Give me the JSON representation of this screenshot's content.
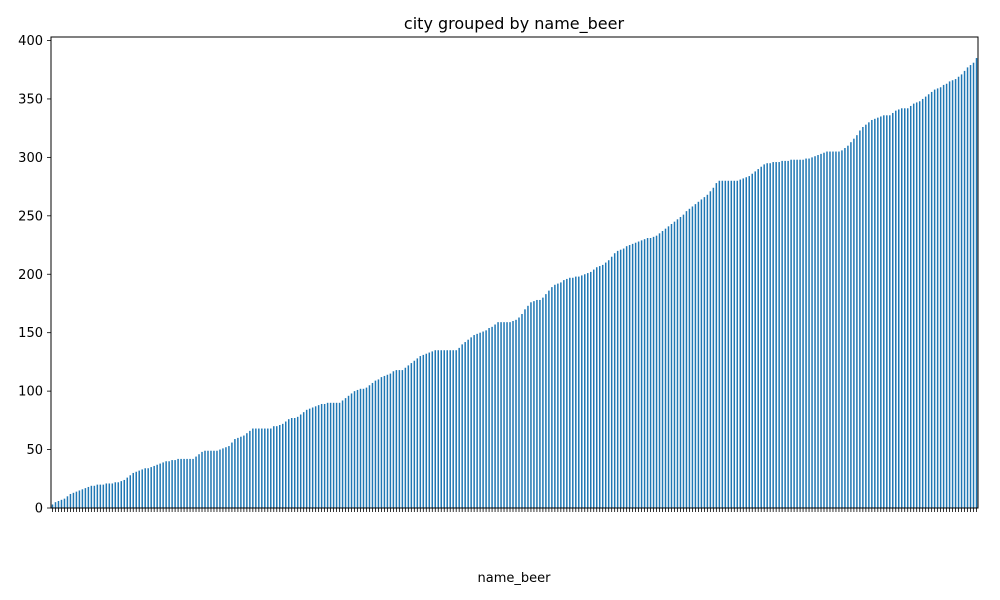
{
  "chart_data": {
    "type": "bar",
    "title": "city grouped by name_beer",
    "xlabel": "name_beer",
    "ylabel": "",
    "ylim": [
      0,
      403
    ],
    "yticks": [
      0,
      50,
      100,
      150,
      200,
      250,
      300,
      350,
      400
    ],
    "bar_color": "#1f77b4",
    "grid": false,
    "legend": "none",
    "values": [
      3,
      5,
      6,
      7,
      8,
      10,
      12,
      13,
      14,
      15,
      16,
      17,
      18,
      19,
      19,
      20,
      20,
      20,
      21,
      21,
      21,
      22,
      22,
      23,
      24,
      26,
      28,
      30,
      31,
      32,
      33,
      34,
      34,
      35,
      36,
      37,
      38,
      39,
      40,
      40,
      41,
      41,
      42,
      42,
      42,
      42,
      42,
      42,
      44,
      46,
      48,
      49,
      49,
      49,
      49,
      49,
      50,
      51,
      52,
      53,
      56,
      59,
      60,
      61,
      62,
      64,
      66,
      68,
      68,
      68,
      68,
      68,
      68,
      68,
      70,
      70,
      71,
      72,
      74,
      76,
      77,
      77,
      78,
      80,
      82,
      84,
      85,
      86,
      87,
      88,
      89,
      89,
      90,
      90,
      90,
      90,
      90,
      92,
      94,
      96,
      98,
      100,
      101,
      102,
      102,
      103,
      105,
      107,
      109,
      110,
      112,
      113,
      114,
      115,
      117,
      118,
      118,
      118,
      120,
      122,
      124,
      126,
      128,
      130,
      131,
      132,
      133,
      134,
      135,
      135,
      135,
      135,
      135,
      135,
      135,
      135,
      137,
      140,
      142,
      144,
      146,
      148,
      149,
      150,
      151,
      152,
      154,
      155,
      157,
      159,
      159,
      159,
      159,
      159,
      160,
      161,
      163,
      166,
      170,
      173,
      176,
      177,
      178,
      178,
      180,
      183,
      186,
      189,
      191,
      192,
      193,
      195,
      196,
      197,
      197,
      198,
      198,
      199,
      200,
      201,
      202,
      204,
      206,
      207,
      208,
      210,
      212,
      215,
      218,
      220,
      221,
      222,
      224,
      225,
      226,
      227,
      228,
      229,
      230,
      231,
      231,
      232,
      233,
      235,
      237,
      239,
      241,
      243,
      245,
      247,
      249,
      251,
      254,
      256,
      258,
      260,
      262,
      264,
      266,
      268,
      271,
      274,
      278,
      280,
      280,
      280,
      280,
      280,
      280,
      280,
      281,
      282,
      283,
      284,
      286,
      288,
      290,
      292,
      294,
      295,
      295,
      296,
      296,
      296,
      297,
      297,
      297,
      298,
      298,
      298,
      298,
      298,
      299,
      299,
      300,
      301,
      302,
      303,
      304,
      305,
      305,
      305,
      305,
      305,
      306,
      308,
      310,
      313,
      316,
      319,
      323,
      326,
      328,
      330,
      332,
      333,
      334,
      335,
      336,
      336,
      336,
      338,
      340,
      341,
      342,
      342,
      342,
      344,
      346,
      347,
      348,
      350,
      352,
      354,
      356,
      358,
      359,
      360,
      362,
      363,
      365,
      366,
      367,
      369,
      371,
      374,
      377,
      379,
      381,
      385
    ]
  }
}
